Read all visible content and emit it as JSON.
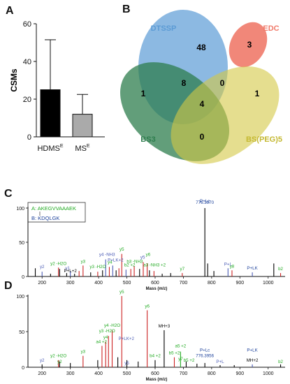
{
  "panels": {
    "a": "A",
    "b": "B",
    "c": "C",
    "d": "D"
  },
  "chart_data": [
    {
      "type": "bar",
      "ylabel": "CSMs",
      "ylim": [
        0,
        60
      ],
      "yticks": [
        "0",
        "20",
        "40",
        "60"
      ],
      "categories": [
        {
          "name": "HDMS",
          "sup": "E"
        },
        {
          "name": "MS",
          "sup": "E"
        }
      ],
      "values": [
        25,
        12
      ],
      "errors": [
        26.5,
        10.5
      ],
      "colors": [
        "#000000",
        "#aaaaaa"
      ]
    },
    {
      "type": "venn",
      "sets": [
        {
          "name": "DTSSP",
          "color": "#5b9bd5"
        },
        {
          "name": "EDC",
          "color": "#f07a6a"
        },
        {
          "name": "BS3",
          "color": "#2e7d4e"
        },
        {
          "name": "BS(PEG)5",
          "color": "#d4c844"
        }
      ],
      "counts": [
        {
          "region": "DTSSP",
          "value": "48"
        },
        {
          "region": "EDC",
          "value": "3"
        },
        {
          "region": "BS3",
          "value": "1"
        },
        {
          "region": "DTSSP+BS3",
          "value": "8"
        },
        {
          "region": "DTSSP+BS(PEG)5",
          "value": "0"
        },
        {
          "region": "BS(PEG)5",
          "value": "1"
        },
        {
          "region": "DTSSP+BS3+BS(PEG)5",
          "value": "4"
        },
        {
          "region": "BS3+BS(PEG)5",
          "value": "0"
        }
      ]
    },
    {
      "type": "spectrum",
      "legend": {
        "a": "A: AKEGVVAAAEK",
        "b": "B: KDQLGK"
      },
      "xlabel": "Mass (m/z)",
      "xlim": [
        150,
        1060
      ],
      "xticks": [
        "200",
        "300",
        "400",
        "500",
        "600",
        "700",
        "800",
        "900",
        "1000"
      ],
      "ylim": [
        0,
        100
      ],
      "yticks": [
        "0",
        "50",
        "100"
      ],
      "peaks": [
        {
          "mz": 176,
          "i": 12,
          "c": "#000000"
        },
        {
          "mz": 200,
          "i": 7,
          "c": "#4a5bb5"
        },
        {
          "mz": 230,
          "i": 4,
          "c": "#000000"
        },
        {
          "mz": 258,
          "i": 13,
          "c": "#cc2222"
        },
        {
          "mz": 262,
          "i": 11,
          "c": "#000000"
        },
        {
          "mz": 287,
          "i": 5,
          "c": "#000000"
        },
        {
          "mz": 300,
          "i": 8,
          "c": "#4a5bb5"
        },
        {
          "mz": 315,
          "i": 4,
          "c": "#000000"
        },
        {
          "mz": 331,
          "i": 8,
          "c": "#cc2222"
        },
        {
          "mz": 345,
          "i": 16,
          "c": "#cc2222"
        },
        {
          "mz": 372,
          "i": 6,
          "c": "#000000"
        },
        {
          "mz": 397,
          "i": 7,
          "c": "#cc2222"
        },
        {
          "mz": 414,
          "i": 9,
          "c": "#000000"
        },
        {
          "mz": 425,
          "i": 25,
          "c": "#4a5bb5"
        },
        {
          "mz": 438,
          "i": 14,
          "c": "#cc2222"
        },
        {
          "mz": 450,
          "i": 16,
          "c": "#4a5bb5"
        },
        {
          "mz": 462,
          "i": 9,
          "c": "#000000"
        },
        {
          "mz": 472,
          "i": 12,
          "c": "#cc2222"
        },
        {
          "mz": 482,
          "i": 33,
          "c": "#cc2222"
        },
        {
          "mz": 497,
          "i": 10,
          "c": "#4a5bb5"
        },
        {
          "mz": 514,
          "i": 11,
          "c": "#cc2222"
        },
        {
          "mz": 526,
          "i": 15,
          "c": "#cc2222"
        },
        {
          "mz": 545,
          "i": 11,
          "c": "#000000"
        },
        {
          "mz": 558,
          "i": 21,
          "c": "#cc2222"
        },
        {
          "mz": 572,
          "i": 19,
          "c": "#cc2222"
        },
        {
          "mz": 580,
          "i": 9,
          "c": "#000000"
        },
        {
          "mz": 596,
          "i": 8,
          "c": "#cc2222"
        },
        {
          "mz": 625,
          "i": 4,
          "c": "#000000"
        },
        {
          "mz": 655,
          "i": 5,
          "c": "#000000"
        },
        {
          "mz": 696,
          "i": 5,
          "c": "#cc2222"
        },
        {
          "mz": 776,
          "i": 100,
          "c": "#000000"
        },
        {
          "mz": 786,
          "i": 19,
          "c": "#000000"
        },
        {
          "mz": 808,
          "i": 8,
          "c": "#000000"
        },
        {
          "mz": 858,
          "i": 12,
          "c": "#4a5bb5"
        },
        {
          "mz": 872,
          "i": 9,
          "c": "#cc2222"
        },
        {
          "mz": 944,
          "i": 6,
          "c": "#4a5bb5"
        },
        {
          "mz": 1020,
          "i": 19,
          "c": "#000000"
        },
        {
          "mz": 1044,
          "i": 5,
          "c": "#cc2222"
        }
      ],
      "labels": [
        {
          "mz": 200,
          "i": 12,
          "t": "y2",
          "c": "#4a5bb5"
        },
        {
          "mz": 258,
          "i": 17,
          "t": "y2 -H2O",
          "c": "#22aa22"
        },
        {
          "mz": 290,
          "i": 10,
          "t": "y1",
          "c": "#4a5bb5"
        },
        {
          "mz": 300,
          "i": 6,
          "t": "P+L+2",
          "c": "#000000"
        },
        {
          "mz": 345,
          "i": 20,
          "t": "y3",
          "c": "#22aa22"
        },
        {
          "mz": 397,
          "i": 12,
          "t": "y3 -H2O",
          "c": "#22aa22"
        },
        {
          "mz": 430,
          "i": 30,
          "t": "y4 -NH3",
          "c": "#4a5bb5"
        },
        {
          "mz": 440,
          "i": 19,
          "t": "y4",
          "c": "#22aa22"
        },
        {
          "mz": 460,
          "i": 22,
          "t": "P+LK+2",
          "c": "#4a5bb5"
        },
        {
          "mz": 482,
          "i": 38,
          "t": "y5",
          "c": "#22aa22"
        },
        {
          "mz": 510,
          "i": 15,
          "t": "b2 +2",
          "c": "#22aa22"
        },
        {
          "mz": 528,
          "i": 20,
          "t": "b3 -NH3",
          "c": "#22aa22"
        },
        {
          "mz": 556,
          "i": 26,
          "t": "y5",
          "c": "#4a5bb5"
        },
        {
          "mz": 575,
          "i": 30,
          "t": "y6",
          "c": "#22aa22"
        },
        {
          "mz": 598,
          "i": 15,
          "t": "a3 -NH3 +2",
          "c": "#22aa22"
        },
        {
          "mz": 696,
          "i": 9,
          "t": "y7",
          "c": "#22aa22"
        },
        {
          "mz": 776,
          "i": 116,
          "t": "P+Lc",
          "c": "#1a3f9a"
        },
        {
          "mz": 776,
          "i": 106,
          "t": "776.3970",
          "c": "#1a3f9a"
        },
        {
          "mz": 858,
          "i": 16,
          "t": "P+L",
          "c": "#4a5bb5"
        },
        {
          "mz": 872,
          "i": 13,
          "t": "y8",
          "c": "#22aa22"
        },
        {
          "mz": 944,
          "i": 10,
          "t": "P+LK",
          "c": "#1a3f9a"
        },
        {
          "mz": 1044,
          "i": 9,
          "t": "b2",
          "c": "#22aa22"
        }
      ]
    },
    {
      "type": "spectrum",
      "xlabel": "Mass (m/z)",
      "xlim": [
        150,
        1060
      ],
      "xticks": [
        "200",
        "300",
        "400",
        "500",
        "600",
        "700",
        "800",
        "900",
        "1000"
      ],
      "ylim": [
        0,
        100
      ],
      "yticks": [
        "0",
        "50",
        "100"
      ],
      "peaks": [
        {
          "mz": 200,
          "i": 4,
          "c": "#000000"
        },
        {
          "mz": 258,
          "i": 10,
          "c": "#cc2222"
        },
        {
          "mz": 262,
          "i": 8,
          "c": "#000000"
        },
        {
          "mz": 300,
          "i": 6,
          "c": "#000000"
        },
        {
          "mz": 345,
          "i": 16,
          "c": "#cc2222"
        },
        {
          "mz": 397,
          "i": 10,
          "c": "#000000"
        },
        {
          "mz": 412,
          "i": 30,
          "c": "#cc2222"
        },
        {
          "mz": 425,
          "i": 36,
          "c": "#cc2222"
        },
        {
          "mz": 435,
          "i": 44,
          "c": "#cc2222"
        },
        {
          "mz": 448,
          "i": 52,
          "c": "#cc2222"
        },
        {
          "mz": 468,
          "i": 14,
          "c": "#000000"
        },
        {
          "mz": 482,
          "i": 100,
          "c": "#cc2222"
        },
        {
          "mz": 500,
          "i": 10,
          "c": "#000000"
        },
        {
          "mz": 540,
          "i": 8,
          "c": "#000000"
        },
        {
          "mz": 572,
          "i": 80,
          "c": "#cc2222"
        },
        {
          "mz": 600,
          "i": 10,
          "c": "#000000"
        },
        {
          "mz": 632,
          "i": 52,
          "c": "#000000"
        },
        {
          "mz": 668,
          "i": 14,
          "c": "#cc2222"
        },
        {
          "mz": 690,
          "i": 22,
          "c": "#22aa22"
        },
        {
          "mz": 710,
          "i": 8,
          "c": "#000000"
        },
        {
          "mz": 748,
          "i": 5,
          "c": "#000000"
        },
        {
          "mz": 776,
          "i": 6,
          "c": "#000000"
        },
        {
          "mz": 830,
          "i": 3,
          "c": "#000000"
        },
        {
          "mz": 880,
          "i": 3,
          "c": "#000000"
        },
        {
          "mz": 944,
          "i": 4,
          "c": "#4a5bb5"
        },
        {
          "mz": 1044,
          "i": 4,
          "c": "#000000"
        }
      ],
      "labels": [
        {
          "mz": 200,
          "i": 8,
          "t": "y2",
          "c": "#4a5bb5"
        },
        {
          "mz": 258,
          "i": 14,
          "t": "y2 -H2O",
          "c": "#22aa22"
        },
        {
          "mz": 262,
          "i": 6,
          "t": "y2",
          "c": "#22aa22"
        },
        {
          "mz": 345,
          "i": 20,
          "t": "y3",
          "c": "#22aa22"
        },
        {
          "mz": 410,
          "i": 34,
          "t": "a4 +2",
          "c": "#22aa22"
        },
        {
          "mz": 425,
          "i": 40,
          "t": "y4",
          "c": "#22aa22"
        },
        {
          "mz": 430,
          "i": 49,
          "t": "y3 -H2O",
          "c": "#22aa22"
        },
        {
          "mz": 448,
          "i": 57,
          "t": "y4 -H2O",
          "c": "#22aa22"
        },
        {
          "mz": 482,
          "i": 104,
          "t": "y5",
          "c": "#22aa22"
        },
        {
          "mz": 498,
          "i": 38,
          "t": "P+LK+2",
          "c": "#4a5bb5"
        },
        {
          "mz": 500,
          "i": 4,
          "t": "y5",
          "c": "#4a5bb5"
        },
        {
          "mz": 572,
          "i": 84,
          "t": "y6",
          "c": "#22aa22"
        },
        {
          "mz": 600,
          "i": 14,
          "t": "b4 +2",
          "c": "#22aa22"
        },
        {
          "mz": 632,
          "i": 56,
          "t": "MH+3",
          "c": "#000000"
        },
        {
          "mz": 668,
          "i": 18,
          "t": "b5 +2",
          "c": "#22aa22"
        },
        {
          "mz": 690,
          "i": 28,
          "t": "a5 +2",
          "c": "#22aa22"
        },
        {
          "mz": 690,
          "i": 10,
          "t": "y7",
          "c": "#22aa22"
        },
        {
          "mz": 720,
          "i": 8,
          "t": "b5 +2",
          "c": "#22aa22"
        },
        {
          "mz": 776,
          "i": 22,
          "t": "P+Lc",
          "c": "#1a3f9a"
        },
        {
          "mz": 776,
          "i": 14,
          "t": "776.3956",
          "c": "#1a3f9a"
        },
        {
          "mz": 830,
          "i": 6,
          "t": "P+L",
          "c": "#4a5bb5"
        },
        {
          "mz": 944,
          "i": 22,
          "t": "P+LK",
          "c": "#1a3f9a"
        },
        {
          "mz": 944,
          "i": 8,
          "t": "MH+2",
          "c": "#000000"
        },
        {
          "mz": 1044,
          "i": 6,
          "t": "b2",
          "c": "#22aa22"
        }
      ]
    }
  ]
}
